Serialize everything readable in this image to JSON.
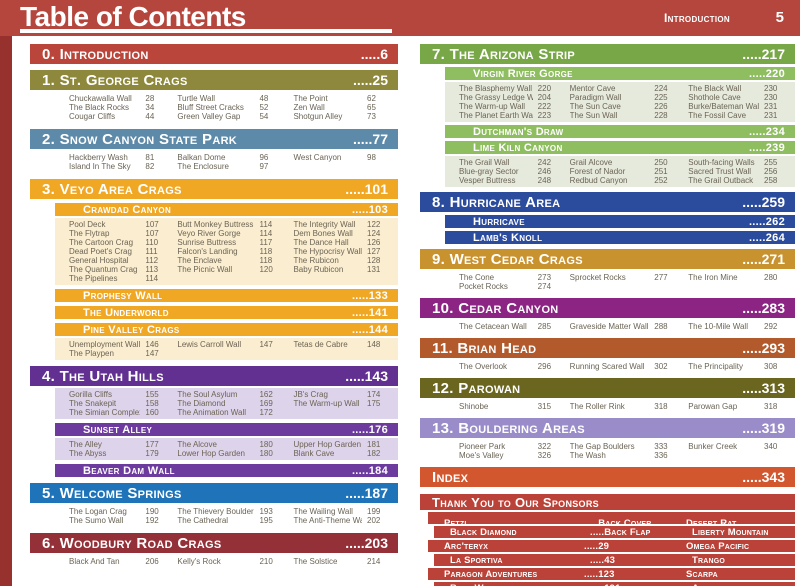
{
  "header": {
    "title": "Table of Contents",
    "running_head": "Introduction",
    "page_number": "5"
  },
  "colors": {
    "header_bg": "#b5463d",
    "left_strip": "#96312e",
    "list_text": "#6b6455",
    "sponsor_red": "#bb4238"
  },
  "columns": {
    "left": [
      {
        "title": "0. Introduction",
        "page": ".....6",
        "color": "#b9453b"
      },
      {
        "title": "1. St. George Crags",
        "page": ".....25",
        "color": "#8d883c",
        "blocks": [
          {
            "type": "list",
            "rows": [
              [
                [
                  "Chuckawalla Wall",
                  "28"
                ],
                [
                  "Turtle Wall",
                  "48"
                ],
                [
                  "The Point",
                  "62"
                ]
              ],
              [
                [
                  "The Black Rocks",
                  "34"
                ],
                [
                  "Bluff Street Cracks",
                  "52"
                ],
                [
                  "Zen Wall",
                  "65"
                ]
              ],
              [
                [
                  "Cougar Cliffs",
                  "44"
                ],
                [
                  "Green Valley Gap",
                  "54"
                ],
                [
                  "Shotgun Alley",
                  "73"
                ]
              ]
            ]
          }
        ]
      },
      {
        "title": "2. Snow Canyon State Park",
        "page": ".....77",
        "color": "#5e8aa9",
        "blocks": [
          {
            "type": "list",
            "rows": [
              [
                [
                  "Hackberry Wash",
                  "81"
                ],
                [
                  "Balkan Dome",
                  "96"
                ],
                [
                  "West Canyon",
                  "98"
                ]
              ],
              [
                [
                  "Island In The Sky",
                  "82"
                ],
                [
                  "The Enclosure",
                  "97"
                ],
                null
              ]
            ]
          }
        ]
      },
      {
        "title": "3. Veyo Area Crags",
        "page": ".....101",
        "color": "#f0a724",
        "blocks": [
          {
            "type": "sub",
            "label": "Crawdad Canyon",
            "page": ".....103"
          },
          {
            "type": "list",
            "tint": "#fbeed0",
            "rows": [
              [
                [
                  "Pool Deck",
                  "107"
                ],
                [
                  "Butt Monkey Buttress",
                  "114"
                ],
                [
                  "The Integrity Wall",
                  "122"
                ]
              ],
              [
                [
                  "The Flytrap",
                  "107"
                ],
                [
                  "Veyo River Gorge",
                  "114"
                ],
                [
                  "Dem Bones Wall",
                  "124"
                ]
              ],
              [
                [
                  "The Cartoon Crag",
                  "110"
                ],
                [
                  "Sunrise Buttress",
                  "117"
                ],
                [
                  "The Dance Hall",
                  "126"
                ]
              ],
              [
                [
                  "Dead Poet's Crag",
                  "111"
                ],
                [
                  "Falcon's Landing",
                  "118"
                ],
                [
                  "The Hypocrisy Wall",
                  "127"
                ]
              ],
              [
                [
                  "General Hospital",
                  "112"
                ],
                [
                  "The Enclave",
                  "118"
                ],
                [
                  "The Rubicon",
                  "128"
                ]
              ],
              [
                [
                  "The Quantum Crag",
                  "113"
                ],
                [
                  "The Picnic Wall",
                  "120"
                ],
                [
                  "Baby Rubicon",
                  "131"
                ]
              ],
              [
                [
                  "The Pipelines",
                  "114"
                ],
                null,
                null
              ]
            ]
          },
          {
            "type": "sub",
            "label": "Prophesy Wall",
            "page": ".....133"
          },
          {
            "type": "sub",
            "label": "The Underworld",
            "page": ".....141"
          },
          {
            "type": "sub",
            "label": "Pine Valley Crags",
            "page": ".....144"
          },
          {
            "type": "list",
            "tint": "#fbeed0",
            "rows": [
              [
                [
                  "Unemployment Wall",
                  "146"
                ],
                [
                  "Lewis Carroll Wall",
                  "147"
                ],
                [
                  "Tetas de Cabre",
                  "148"
                ]
              ],
              [
                [
                  "The Playpen",
                  "147"
                ],
                null,
                null
              ]
            ]
          }
        ]
      },
      {
        "title": "4. The Utah Hills",
        "page": ".....143",
        "color": "#613090",
        "sub_color": "#6d3a9e",
        "blocks": [
          {
            "type": "list",
            "tint": "#ddd3ea",
            "rows": [
              [
                [
                  "Gorilla Cliffs",
                  "155"
                ],
                [
                  "The Soul Asylum",
                  "162"
                ],
                [
                  "JB's Crag",
                  "174"
                ]
              ],
              [
                [
                  "The Snakepit",
                  "158"
                ],
                [
                  "The Diamond",
                  "169"
                ],
                [
                  "The Warm-up Wall",
                  "175"
                ]
              ],
              [
                [
                  "The Simian Complex",
                  "160"
                ],
                [
                  "The Animation Wall",
                  "172"
                ],
                null
              ]
            ]
          },
          {
            "type": "sub",
            "label": "Sunset Alley",
            "page": ".....176"
          },
          {
            "type": "list",
            "tint": "#ddd3ea",
            "rows": [
              [
                [
                  "The Alley",
                  "177"
                ],
                [
                  "The Alcove",
                  "180"
                ],
                [
                  "Upper Hop Garden",
                  "181"
                ]
              ],
              [
                [
                  "The Abyss",
                  "179"
                ],
                [
                  "Lower Hop Garden",
                  "180"
                ],
                [
                  "Blank Cave",
                  "182"
                ]
              ]
            ]
          },
          {
            "type": "sub",
            "label": "Beaver Dam Wall",
            "page": ".....184"
          }
        ]
      },
      {
        "title": "5. Welcome Springs",
        "page": ".....187",
        "color": "#1e73b9",
        "blocks": [
          {
            "type": "list",
            "rows": [
              [
                [
                  "The Logan Crag",
                  "190"
                ],
                [
                  "The Thievery Boulder",
                  "193"
                ],
                [
                  "The Wailing Wall",
                  "199"
                ]
              ],
              [
                [
                  "The Sumo Wall",
                  "192"
                ],
                [
                  "The Cathedral",
                  "195"
                ],
                [
                  "The Anti-Theme Wall",
                  "202"
                ]
              ]
            ]
          }
        ]
      },
      {
        "title": "6. Woodbury Road Crags",
        "page": ".....203",
        "color": "#943138",
        "blocks": [
          {
            "type": "list",
            "rows": [
              [
                [
                  "Black And Tan",
                  "206"
                ],
                [
                  "Kelly's Rock",
                  "210"
                ],
                [
                  "The Solstice",
                  "214"
                ]
              ]
            ]
          }
        ]
      }
    ],
    "right": [
      {
        "title": "7. The Arizona Strip",
        "page": ".....217",
        "color": "#78a747",
        "sub_color": "#8fbe60",
        "blocks": [
          {
            "type": "sub",
            "label": "Virgin River Gorge",
            "page": ".....220"
          },
          {
            "type": "list",
            "tint": "#e6eadc",
            "rows": [
              [
                [
                  "The Blasphemy Wall",
                  "220"
                ],
                [
                  "Mentor Cave",
                  "224"
                ],
                [
                  "The Black Wall",
                  "230"
                ]
              ],
              [
                [
                  "The Grassy Ledge Wall",
                  "204"
                ],
                [
                  "Paradigm Wall",
                  "225"
                ],
                [
                  "Shothole Cave",
                  "230"
                ]
              ],
              [
                [
                  "The Warm-up Wall",
                  "222"
                ],
                [
                  "The Sun Cave",
                  "226"
                ],
                [
                  "Burke/Bateman Wall",
                  "231"
                ]
              ],
              [
                [
                  "The Planet Earth Wall",
                  "223"
                ],
                [
                  "The Sun Wall",
                  "228"
                ],
                [
                  "The Fossil Cave",
                  "231"
                ]
              ]
            ]
          },
          {
            "type": "sub",
            "label": "Dutchman's Draw",
            "page": ".....234"
          },
          {
            "type": "sub",
            "label": "Lime Kiln Canyon",
            "page": ".....239"
          },
          {
            "type": "list",
            "tint": "#e6eadc",
            "rows": [
              [
                [
                  "The Grail Wall",
                  "242"
                ],
                [
                  "Grail Alcove",
                  "250"
                ],
                [
                  "South-facing Walls",
                  "255"
                ]
              ],
              [
                [
                  "Blue-gray Sector",
                  "246"
                ],
                [
                  "Forest of Nador",
                  "251"
                ],
                [
                  "Sacred Trust Wall",
                  "256"
                ]
              ],
              [
                [
                  "Vesper Buttress",
                  "248"
                ],
                [
                  "Redbud Canyon",
                  "252"
                ],
                [
                  "The Grail Outback",
                  "258"
                ]
              ]
            ]
          }
        ]
      },
      {
        "title": "8. Hurricane Area",
        "page": ".....259",
        "color": "#2b4c9d",
        "blocks": [
          {
            "type": "sub",
            "label": "Hurricave",
            "page": ".....262"
          },
          {
            "type": "sub",
            "label": "Lamb's Knoll",
            "page": ".....264"
          }
        ]
      },
      {
        "title": "9. West Cedar Crags",
        "page": ".....271",
        "color": "#c8922f",
        "blocks": [
          {
            "type": "list",
            "rows": [
              [
                [
                  "The Cone",
                  "273"
                ],
                [
                  "Sprocket Rocks",
                  "277"
                ],
                [
                  "The Iron Mine",
                  "280"
                ]
              ],
              [
                [
                  "Pocket Rocks",
                  "274"
                ],
                null,
                null
              ]
            ]
          }
        ]
      },
      {
        "title": "10. Cedar Canyon",
        "page": ".....283",
        "color": "#8c2483",
        "blocks": [
          {
            "type": "list",
            "rows": [
              [
                [
                  "The Cetacean Wall",
                  "285"
                ],
                [
                  "Graveside Matter Wall",
                  "288"
                ],
                [
                  "The 10-Mile Wall",
                  "292"
                ]
              ]
            ]
          }
        ]
      },
      {
        "title": "11. Brian Head",
        "page": ".....293",
        "color": "#b25a2c",
        "blocks": [
          {
            "type": "list",
            "rows": [
              [
                [
                  "The Overlook",
                  "296"
                ],
                [
                  "Running Scared Wall",
                  "302"
                ],
                [
                  "The Principality",
                  "308"
                ]
              ]
            ]
          }
        ]
      },
      {
        "title": "12. Parowan",
        "page": ".....313",
        "color": "#6a661f",
        "blocks": [
          {
            "type": "list",
            "rows": [
              [
                [
                  "Shinobe",
                  "315"
                ],
                [
                  "The Roller Rink",
                  "318"
                ],
                [
                  "Parowan Gap",
                  "318"
                ]
              ]
            ]
          }
        ]
      },
      {
        "title": "13. Bouldering Areas",
        "page": ".....319",
        "color": "#9a8cc9",
        "blocks": [
          {
            "type": "list",
            "rows": [
              [
                [
                  "Pioneer Park",
                  "322"
                ],
                [
                  "The Gap Boulders",
                  "333"
                ],
                [
                  "Bunker Creek",
                  "340"
                ]
              ],
              [
                [
                  "Moe's Valley",
                  "326"
                ],
                [
                  "The Wash",
                  "336"
                ],
                null
              ]
            ]
          }
        ]
      },
      {
        "title": "Index",
        "page": ".....343",
        "color": "#d2572e"
      }
    ]
  },
  "sponsors": {
    "title": "Thank You to Our Sponsors",
    "rows": [
      {
        "left_name": "Petzl",
        "left_ref": ".....Back Cover",
        "right_name": "Desert Rat",
        "right_ref": ".....Front Flap"
      },
      {
        "left_name": "Black Diamond",
        "left_ref": ".....Back Flap",
        "right_name": "Liberty Mountain",
        "right_ref": ".....198"
      },
      {
        "left_name": "Arc'teryx",
        "left_ref": ".....29",
        "right_name": "Omega Pacific",
        "right_ref": ".....209"
      },
      {
        "left_name": "La Sportiva",
        "left_ref": ".....43",
        "right_name": "Trango",
        "right_ref": ".....229"
      },
      {
        "left_name": "Paragon Adventures",
        "left_ref": ".....123",
        "right_name": "Scarpa",
        "right_ref": ".....261"
      },
      {
        "left_name": "Blue Water",
        "left_ref": ".....191",
        "right_name": "Asana",
        "right_ref": ".....321"
      }
    ]
  }
}
